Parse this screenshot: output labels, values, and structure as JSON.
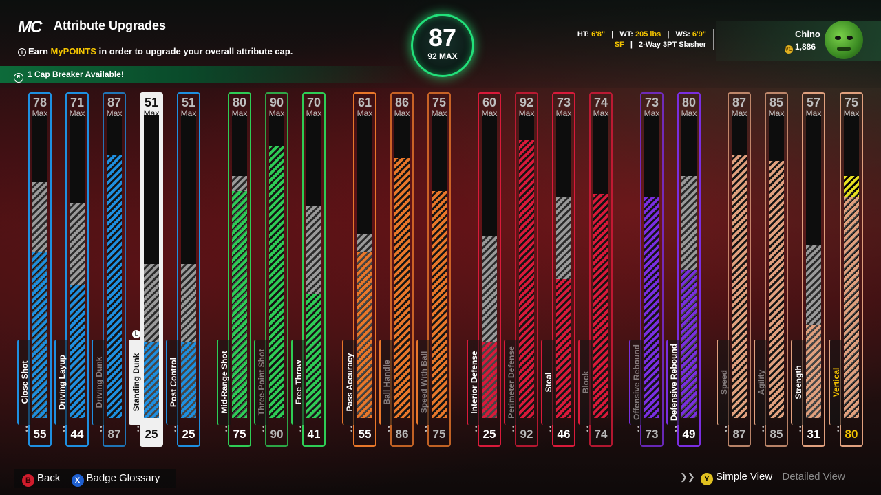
{
  "header": {
    "logo": "MC",
    "title": "Attribute Upgrades",
    "subtitle_pre": "Earn ",
    "subtitle_highlight": "MyPOINTS",
    "subtitle_post": " in order to upgrade your overall attribute cap.",
    "info_icon": "info-icon",
    "cap_breaker": "1 Cap Breaker Available!"
  },
  "overall": {
    "value": "87",
    "max_label": "92 MAX"
  },
  "player": {
    "ht_label": "HT:",
    "ht": "6'8\"",
    "wt_label": "WT:",
    "wt": "205 lbs",
    "ws_label": "WS:",
    "ws": "6'9\"",
    "position": "SF",
    "archetype": "2-Way 3PT Slasher",
    "name": "Chino",
    "coins": "1,886"
  },
  "max_label": "Max",
  "colors": {
    "blue": "#1e8fe0",
    "green": "#2ecc55",
    "orange": "#e8772a",
    "red": "#d81a3a",
    "purple": "#7a2ee0",
    "tan": "#e0a07e",
    "yellow": "#e8e020"
  },
  "attributes": [
    {
      "label": "Close Shot",
      "max": "78",
      "current": "55",
      "max_value": 78,
      "current_value": 55,
      "color": "blue",
      "dim": false
    },
    {
      "label": "Driving Layup",
      "max": "71",
      "current": "44",
      "max_value": 71,
      "current_value": 44,
      "color": "blue",
      "dim": false
    },
    {
      "label": "Driving Dunk",
      "max": "87",
      "current": "87",
      "max_value": 87,
      "current_value": 87,
      "color": "blue",
      "dim": true
    },
    {
      "label": "Standing Dunk",
      "max": "51",
      "current": "25",
      "max_value": 51,
      "current_value": 25,
      "color": "blue",
      "dim": false,
      "selected": true
    },
    {
      "label": "Post Control",
      "max": "51",
      "current": "25",
      "max_value": 51,
      "current_value": 25,
      "color": "blue",
      "dim": false
    },
    {
      "label": "Mid-Range Shot",
      "max": "80",
      "current": "75",
      "max_value": 80,
      "current_value": 75,
      "color": "green",
      "dim": false
    },
    {
      "label": "Three-Point Shot",
      "max": "90",
      "current": "90",
      "max_value": 90,
      "current_value": 90,
      "color": "green",
      "dim": true
    },
    {
      "label": "Free Throw",
      "max": "70",
      "current": "41",
      "max_value": 70,
      "current_value": 41,
      "color": "green",
      "dim": false
    },
    {
      "label": "Pass Accuracy",
      "max": "61",
      "current": "55",
      "max_value": 61,
      "current_value": 55,
      "color": "orange",
      "dim": false
    },
    {
      "label": "Ball Handle",
      "max": "86",
      "current": "86",
      "max_value": 86,
      "current_value": 86,
      "color": "orange",
      "dim": true
    },
    {
      "label": "Speed With Ball",
      "max": "75",
      "current": "75",
      "max_value": 75,
      "current_value": 75,
      "color": "orange",
      "dim": true
    },
    {
      "label": "Interior Defense",
      "max": "60",
      "current": "25",
      "max_value": 60,
      "current_value": 25,
      "color": "red",
      "dim": false
    },
    {
      "label": "Perimeter Defense",
      "max": "92",
      "current": "92",
      "max_value": 92,
      "current_value": 92,
      "color": "red",
      "dim": true
    },
    {
      "label": "Steal",
      "max": "73",
      "current": "46",
      "max_value": 73,
      "current_value": 46,
      "color": "red",
      "dim": false
    },
    {
      "label": "Block",
      "max": "74",
      "current": "74",
      "max_value": 74,
      "current_value": 74,
      "color": "red",
      "dim": true
    },
    {
      "label": "Offensive Rebound",
      "max": "73",
      "current": "73",
      "max_value": 73,
      "current_value": 73,
      "color": "purple",
      "dim": true
    },
    {
      "label": "Defensive Rebound",
      "max": "80",
      "current": "49",
      "max_value": 80,
      "current_value": 49,
      "color": "purple",
      "dim": false
    },
    {
      "label": "Speed",
      "max": "87",
      "current": "87",
      "max_value": 87,
      "current_value": 87,
      "color": "tan",
      "dim": true
    },
    {
      "label": "Agility",
      "max": "85",
      "current": "85",
      "max_value": 85,
      "current_value": 85,
      "color": "tan",
      "dim": true
    },
    {
      "label": "Strength",
      "max": "57",
      "current": "31",
      "max_value": 57,
      "current_value": 31,
      "color": "tan",
      "dim": false
    },
    {
      "label": "Vertical",
      "max": "75",
      "current": "80",
      "max_value": 75,
      "current_value": 80,
      "color": "tan",
      "dim": false,
      "boosted": true
    }
  ],
  "footer": {
    "back_button": "B",
    "back_label": "Back",
    "glossary_button": "X",
    "glossary_label": "Badge Glossary",
    "view_button": "Y",
    "simple_view": "Simple View",
    "detailed_view": "Detailed View"
  }
}
